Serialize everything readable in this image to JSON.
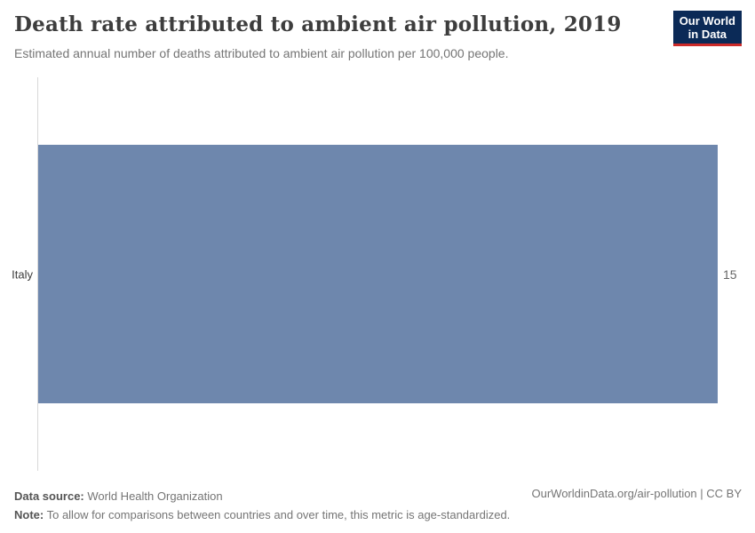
{
  "header": {
    "title": "Death rate attributed to ambient air pollution, 2019",
    "subtitle": "Estimated annual number of deaths attributed to ambient air pollution per 100,000 people."
  },
  "logo": {
    "line1": "Our World",
    "line2": "in Data"
  },
  "chart_data": {
    "type": "bar",
    "orientation": "horizontal",
    "title": "Death rate attributed to ambient air pollution, 2019",
    "subtitle": "Estimated annual number of deaths attributed to ambient air pollution per 100,000 people.",
    "categories": [
      "Italy"
    ],
    "values": [
      15
    ],
    "value_labels": [
      "15"
    ],
    "xlabel": "",
    "ylabel": "",
    "xlim": [
      0,
      15
    ],
    "grid": false,
    "legend": "none",
    "bar_color": "#6e87ad"
  },
  "footer": {
    "data_source_label": "Data source:",
    "data_source_value": " World Health Organization",
    "note_label": "Note:",
    "note_value": " To allow for comparisons between countries and over time, this metric is age-standardized.",
    "link": "OurWorldinData.org/air-pollution | CC BY"
  },
  "colors": {
    "bar": "#6e87ad",
    "axis_line": "#d9d9d9",
    "title_text": "#3d3d3d",
    "muted_text": "#757575",
    "logo_bg": "#0b2a57",
    "logo_stripe": "#cc2b29"
  }
}
